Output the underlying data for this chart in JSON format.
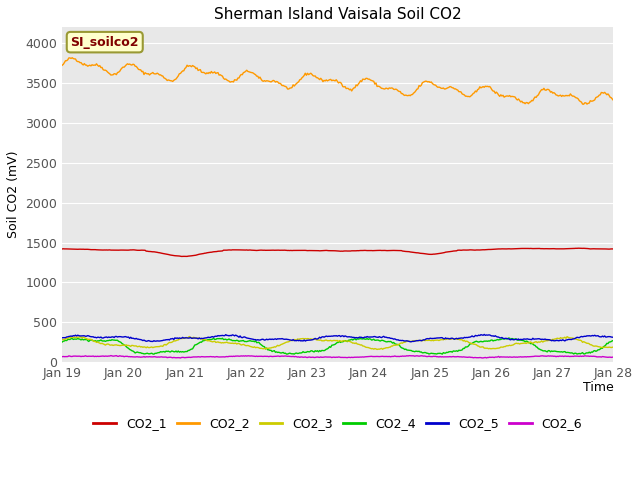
{
  "title": "Sherman Island Vaisala Soil CO2",
  "ylabel": "Soil CO2 (mV)",
  "xlabel": "Time",
  "annotation_text": "SI_soilco2",
  "annotation_bg": "#ffffcc",
  "annotation_border": "#999933",
  "annotation_text_color": "#800000",
  "x_tick_labels": [
    "Jan 19",
    "Jan 20",
    "Jan 21",
    "Jan 22",
    "Jan 23",
    "Jan 24",
    "Jan 25",
    "Jan 26",
    "Jan 27",
    "Jan 28"
  ],
  "ylim": [
    0,
    4200
  ],
  "yticks": [
    0,
    500,
    1000,
    1500,
    2000,
    2500,
    3000,
    3500,
    4000
  ],
  "bg_color": "#e8e8e8",
  "fig_bg": "#ffffff",
  "colors": {
    "CO2_1": "#cc0000",
    "CO2_2": "#ff9900",
    "CO2_3": "#cccc00",
    "CO2_4": "#00cc00",
    "CO2_5": "#0000cc",
    "CO2_6": "#cc00cc"
  },
  "n_points": 500,
  "linewidth": 1.0
}
